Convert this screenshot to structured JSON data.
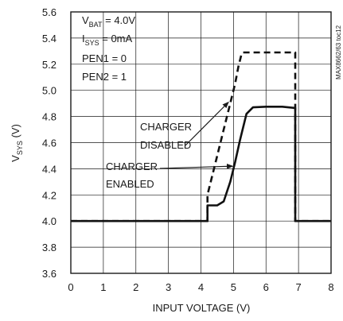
{
  "chart_data": {
    "type": "line",
    "xlabel": "INPUT VOLTAGE (V)",
    "ylabel": {
      "main": "V",
      "sub": "SYS",
      "unit": " (V)"
    },
    "xlim": [
      0,
      8
    ],
    "ylim": [
      3.6,
      5.6
    ],
    "x_ticks": [
      "0",
      "1",
      "2",
      "3",
      "4",
      "5",
      "6",
      "7",
      "8"
    ],
    "y_ticks": [
      "3.6",
      "3.8",
      "4.0",
      "4.2",
      "4.4",
      "4.6",
      "4.8",
      "5.0",
      "5.2",
      "5.4",
      "5.6"
    ],
    "grid": true,
    "conditions": [
      {
        "main": "V",
        "sub": "BAT",
        "rest": " = 4.0V"
      },
      {
        "main": "I",
        "sub": "SYS",
        "rest": " = 0mA"
      },
      {
        "main": "PEN1 = 0",
        "sub": "",
        "rest": ""
      },
      {
        "main": "PEN2 = 1",
        "sub": "",
        "rest": ""
      }
    ],
    "figure_code": "MAX8662/63 toc12",
    "series": [
      {
        "id": "disabled",
        "style": "dashed",
        "x": [
          0,
          4.2,
          4.2,
          4.45,
          4.7,
          4.9,
          5.05,
          5.15,
          5.25,
          5.3,
          6.9,
          6.9,
          8
        ],
        "y": [
          4.0,
          4.0,
          4.2,
          4.45,
          4.7,
          4.9,
          5.05,
          5.18,
          5.28,
          5.29,
          5.29,
          4.0,
          4.0
        ]
      },
      {
        "id": "enabled",
        "style": "solid",
        "x": [
          0,
          4.2,
          4.2,
          4.5,
          4.7,
          4.9,
          5.05,
          5.2,
          5.4,
          5.6,
          6.0,
          6.5,
          6.9,
          6.9,
          8
        ],
        "y": [
          4.0,
          4.0,
          4.12,
          4.12,
          4.15,
          4.3,
          4.45,
          4.62,
          4.82,
          4.87,
          4.875,
          4.875,
          4.865,
          4.0,
          4.0
        ]
      }
    ],
    "annotations": [
      {
        "lines": [
          "CHARGER",
          "DISABLED"
        ],
        "target_series": "disabled",
        "target": [
          4.85,
          4.91
        ]
      },
      {
        "lines": [
          "CHARGER",
          "ENABLED"
        ],
        "target_series": "enabled",
        "target": [
          4.98,
          4.42
        ]
      }
    ]
  }
}
